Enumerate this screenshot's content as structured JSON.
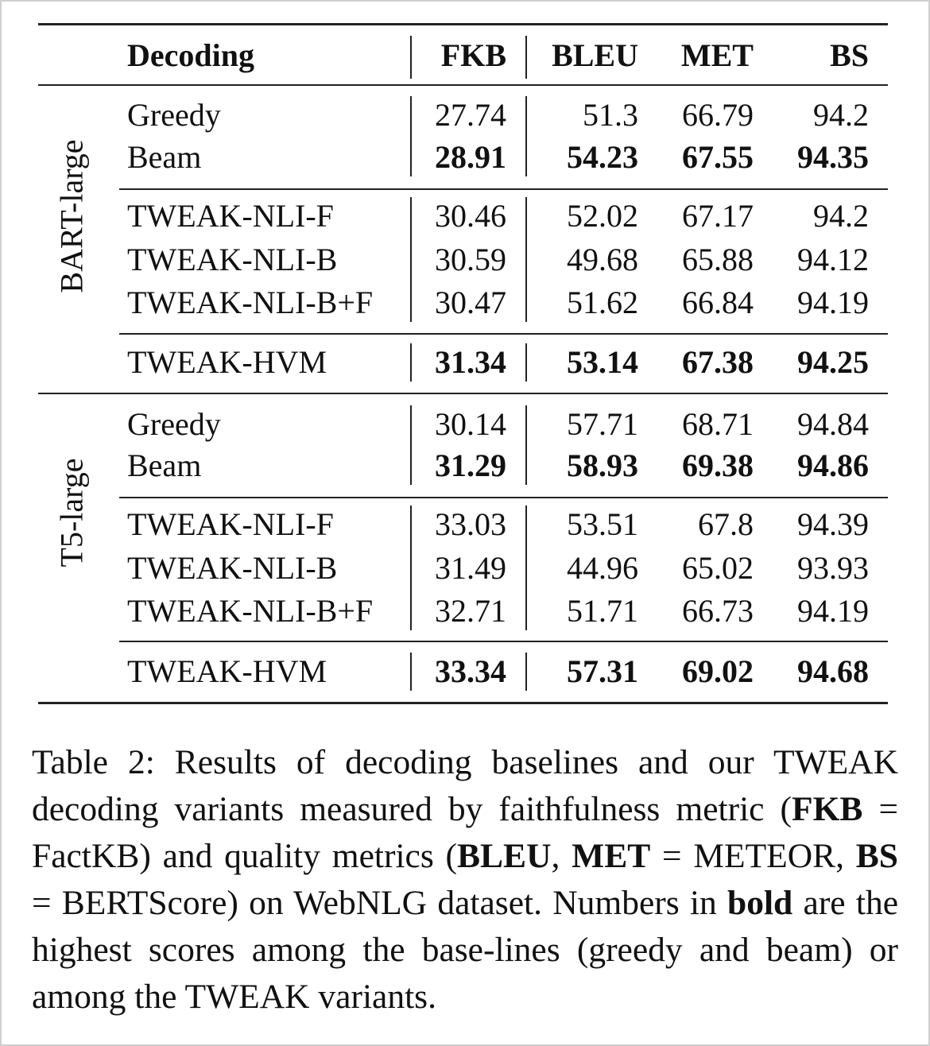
{
  "table": {
    "headers": [
      "Decoding",
      "FKB",
      "BLEU",
      "MET",
      "BS"
    ],
    "groups": [
      {
        "model": "BART-large",
        "rows": [
          {
            "decoding": "Greedy",
            "values": [
              "27.74",
              "51.3",
              "66.79",
              "94.2"
            ],
            "bold": [
              false,
              false,
              false,
              false
            ]
          },
          {
            "decoding": "Beam",
            "values": [
              "28.91",
              "54.23",
              "67.55",
              "94.35"
            ],
            "bold": [
              true,
              true,
              true,
              true
            ]
          },
          {
            "decoding": "TWEAK-NLI-F",
            "values": [
              "30.46",
              "52.02",
              "67.17",
              "94.2"
            ],
            "bold": [
              false,
              false,
              false,
              false
            ]
          },
          {
            "decoding": "TWEAK-NLI-B",
            "values": [
              "30.59",
              "49.68",
              "65.88",
              "94.12"
            ],
            "bold": [
              false,
              false,
              false,
              false
            ]
          },
          {
            "decoding": "TWEAK-NLI-B+F",
            "values": [
              "30.47",
              "51.62",
              "66.84",
              "94.19"
            ],
            "bold": [
              false,
              false,
              false,
              false
            ]
          },
          {
            "decoding": "TWEAK-HVM",
            "values": [
              "31.34",
              "53.14",
              "67.38",
              "94.25"
            ],
            "bold": [
              true,
              true,
              true,
              true
            ]
          }
        ]
      },
      {
        "model": "T5-large",
        "rows": [
          {
            "decoding": "Greedy",
            "values": [
              "30.14",
              "57.71",
              "68.71",
              "94.84"
            ],
            "bold": [
              false,
              false,
              false,
              false
            ]
          },
          {
            "decoding": "Beam",
            "values": [
              "31.29",
              "58.93",
              "69.38",
              "94.86"
            ],
            "bold": [
              true,
              true,
              true,
              true
            ]
          },
          {
            "decoding": "TWEAK-NLI-F",
            "values": [
              "33.03",
              "53.51",
              "67.8",
              "94.39"
            ],
            "bold": [
              false,
              false,
              false,
              false
            ]
          },
          {
            "decoding": "TWEAK-NLI-B",
            "values": [
              "31.49",
              "44.96",
              "65.02",
              "93.93"
            ],
            "bold": [
              false,
              false,
              false,
              false
            ]
          },
          {
            "decoding": "TWEAK-NLI-B+F",
            "values": [
              "32.71",
              "51.71",
              "66.73",
              "94.19"
            ],
            "bold": [
              false,
              false,
              false,
              false
            ]
          },
          {
            "decoding": "TWEAK-HVM",
            "values": [
              "33.34",
              "57.31",
              "69.02",
              "94.68"
            ],
            "bold": [
              true,
              true,
              true,
              true
            ]
          }
        ]
      }
    ]
  },
  "caption": [
    {
      "text": "Table 2: Results of decoding baselines and our TWEAK decoding variants measured by faithfulness metric (",
      "bold": false
    },
    {
      "text": "FKB",
      "bold": true
    },
    {
      "text": " = FactKB) and quality metrics (",
      "bold": false
    },
    {
      "text": "BLEU",
      "bold": true
    },
    {
      "text": ", ",
      "bold": false
    },
    {
      "text": "MET",
      "bold": true
    },
    {
      "text": " = METEOR, ",
      "bold": false
    },
    {
      "text": "BS",
      "bold": true
    },
    {
      "text": " = BERTScore) on WebNLG dataset. Numbers in ",
      "bold": false
    },
    {
      "text": "bold",
      "bold": true
    },
    {
      "text": " are the highest scores among the base-lines (greedy and beam) or among the TWEAK variants.",
      "bold": false
    }
  ]
}
